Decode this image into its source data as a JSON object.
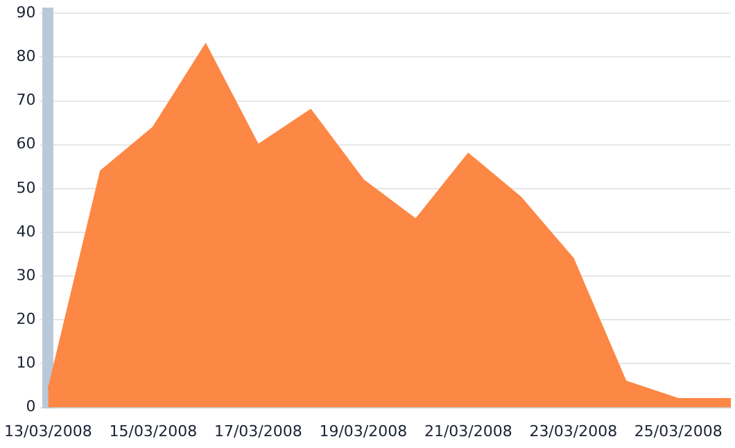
{
  "chart_data": {
    "type": "area",
    "categories": [
      "13/03/2008",
      null,
      "15/03/2008",
      null,
      "17/03/2008",
      null,
      "19/03/2008",
      null,
      "21/03/2008",
      null,
      "23/03/2008",
      null,
      "25/03/2008",
      null
    ],
    "series": [
      {
        "color": "#fd8744",
        "values": [
          4,
          54,
          64,
          83,
          60,
          68,
          52,
          43,
          58,
          48,
          34,
          6,
          2,
          2
        ]
      }
    ],
    "ylim": [
      0,
      90
    ],
    "yticks": [
      0,
      10,
      20,
      30,
      40,
      50,
      60,
      70,
      80,
      90
    ],
    "grid": "y",
    "legend": false
  }
}
